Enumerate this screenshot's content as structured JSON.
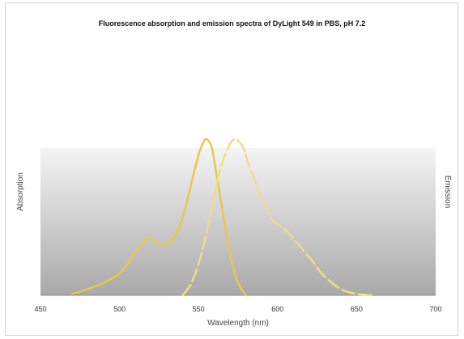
{
  "chart_data": {
    "type": "line",
    "title": "Fluorescence absorption and emission spectra of DyLight 549 in PBS, pH 7.2",
    "xlabel": "Wavelength (nm)",
    "ylabel_left": "Absorption",
    "ylabel_right": "Emission",
    "xlim": [
      450,
      700
    ],
    "ylim": [
      0,
      1
    ],
    "xticks": [
      "450",
      "500",
      "550",
      "600",
      "650",
      "700"
    ],
    "grid": false,
    "background": "gray-gradient",
    "series": [
      {
        "style": "solid",
        "color": "#e7c84a",
        "x": [
          470,
          480,
          490,
          500,
          505,
          510,
          515,
          518,
          520,
          525,
          530,
          535,
          540,
          545,
          550,
          553,
          555,
          558,
          560,
          565,
          570,
          575,
          580
        ],
        "y": [
          0.01,
          0.04,
          0.08,
          0.14,
          0.2,
          0.28,
          0.34,
          0.36,
          0.36,
          0.33,
          0.33,
          0.38,
          0.5,
          0.7,
          0.9,
          0.98,
          1.0,
          0.96,
          0.86,
          0.55,
          0.26,
          0.08,
          0.0
        ]
      },
      {
        "style": "dashed",
        "color": "#f0dc86",
        "x": [
          540,
          545,
          550,
          555,
          560,
          565,
          570,
          573,
          575,
          578,
          582,
          587,
          592,
          597,
          602,
          607,
          612,
          617,
          622,
          627,
          632,
          637,
          642,
          647,
          652,
          657,
          660
        ],
        "y": [
          0.0,
          0.07,
          0.2,
          0.4,
          0.65,
          0.85,
          0.97,
          1.0,
          0.99,
          0.95,
          0.83,
          0.7,
          0.57,
          0.48,
          0.44,
          0.4,
          0.34,
          0.28,
          0.22,
          0.15,
          0.1,
          0.06,
          0.03,
          0.015,
          0.006,
          0.002,
          0.0
        ]
      }
    ]
  }
}
